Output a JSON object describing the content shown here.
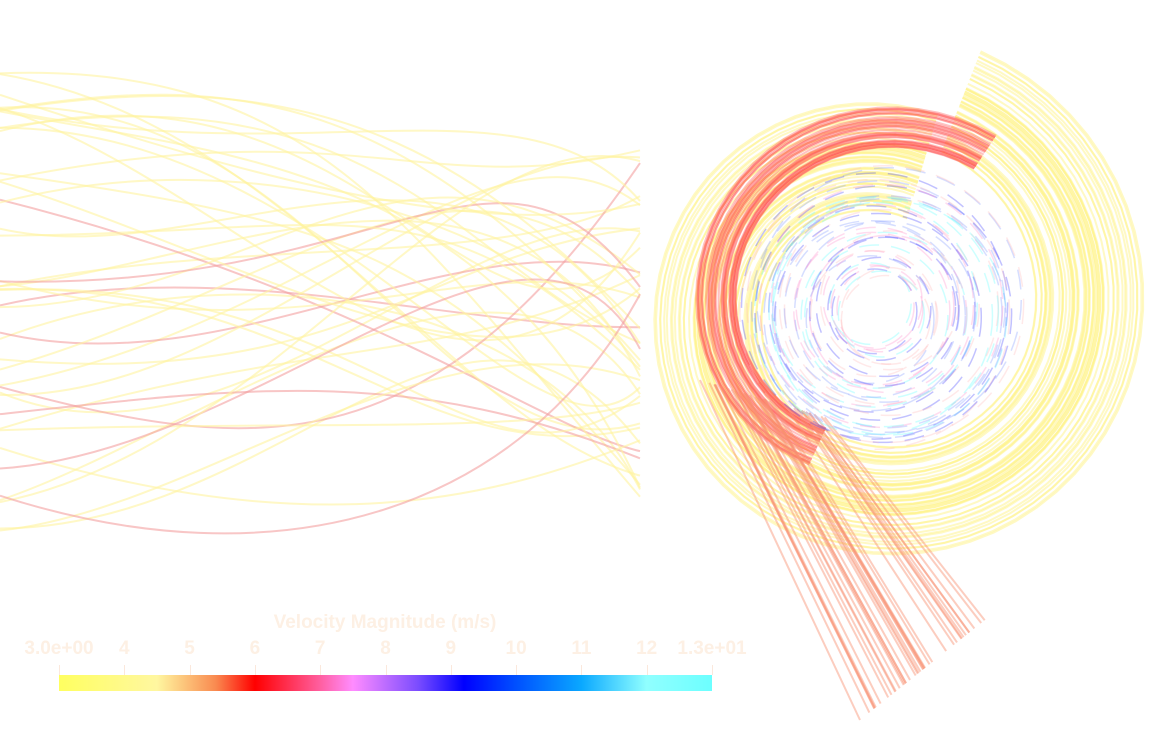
{
  "colorbar": {
    "title": "Velocity Magnitude (m/s)",
    "range": [
      3.0,
      13.0
    ],
    "tick_labels": [
      "3.0e+00",
      "4",
      "5",
      "6",
      "7",
      "8",
      "9",
      "10",
      "11",
      "12",
      "1.3e+01"
    ],
    "tick_values": [
      3,
      4,
      5,
      6,
      7,
      8,
      9,
      10,
      11,
      12,
      13
    ],
    "colors": [
      "#ffff60",
      "#f98a50",
      "#ff0000",
      "#ff8cff",
      "#0000ff",
      "#0aa8ff",
      "#6cffff"
    ]
  }
}
